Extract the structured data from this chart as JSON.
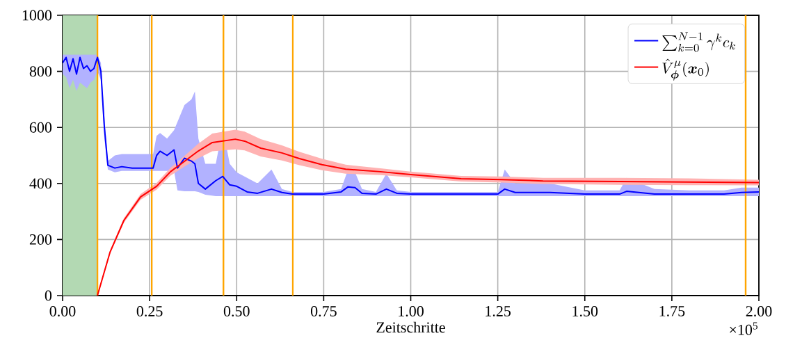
{
  "chart_data": {
    "type": "line",
    "xlabel": "Zeitschritte",
    "x": [
      0,
      0.01,
      0.02,
      0.03,
      0.04,
      0.05,
      0.06,
      0.07,
      0.08,
      0.09,
      0.1,
      0.11,
      0.12,
      0.13,
      0.15,
      0.17,
      0.2,
      0.23,
      0.26,
      0.27,
      0.28,
      0.3,
      0.32,
      0.33,
      0.35,
      0.37,
      0.38,
      0.39,
      0.41,
      0.44,
      0.46,
      0.48,
      0.5,
      0.53,
      0.56,
      0.6,
      0.63,
      0.66,
      0.75,
      0.8,
      0.82,
      0.84,
      0.86,
      0.9,
      0.93,
      0.96,
      1.0,
      1.1,
      1.2,
      1.25,
      1.27,
      1.3,
      1.4,
      1.5,
      1.6,
      1.62,
      1.7,
      1.8,
      1.9,
      1.95,
      2.0
    ],
    "series": [
      {
        "name": "\\sum_{k=0}^{N-1} \\gamma^k c_k",
        "color": "#0000ff",
        "values": [
          830,
          850,
          800,
          845,
          790,
          850,
          810,
          820,
          800,
          810,
          850,
          800,
          600,
          465,
          455,
          460,
          455,
          455,
          455,
          500,
          515,
          500,
          520,
          455,
          490,
          480,
          470,
          400,
          380,
          410,
          425,
          395,
          390,
          370,
          365,
          380,
          368,
          362,
          362,
          370,
          388,
          385,
          365,
          362,
          380,
          365,
          362,
          362,
          362,
          362,
          380,
          368,
          368,
          362,
          362,
          372,
          362,
          362,
          362,
          368,
          370
        ],
        "lower": [
          790,
          780,
          740,
          770,
          730,
          760,
          750,
          740,
          760,
          770,
          800,
          770,
          560,
          450,
          440,
          445,
          445,
          445,
          445,
          445,
          445,
          445,
          445,
          375,
          372,
          372,
          372,
          370,
          360,
          355,
          355,
          355,
          355,
          355,
          355,
          355,
          355,
          355,
          355,
          355,
          355,
          355,
          355,
          355,
          355,
          355,
          355,
          355,
          355,
          355,
          355,
          355,
          355,
          355,
          355,
          355,
          355,
          355,
          355,
          355,
          355
        ],
        "upper": [
          860,
          860,
          860,
          860,
          860,
          860,
          860,
          860,
          860,
          860,
          860,
          830,
          640,
          480,
          500,
          505,
          505,
          505,
          505,
          570,
          580,
          560,
          590,
          620,
          680,
          700,
          728,
          560,
          470,
          470,
          600,
          470,
          440,
          420,
          400,
          450,
          380,
          370,
          370,
          380,
          450,
          440,
          380,
          370,
          435,
          375,
          370,
          370,
          370,
          370,
          450,
          400,
          400,
          375,
          375,
          420,
          380,
          375,
          375,
          385,
          385
        ]
      },
      {
        "name": "\\hat{V}^{\\mu}_{\\boldsymbol{\\phi}}(\\boldsymbol{x}_0)",
        "color": "#ff0000",
        "x": [
          0.1,
          0.136,
          0.176,
          0.224,
          0.27,
          0.31,
          0.35,
          0.39,
          0.43,
          0.496,
          0.523,
          0.569,
          0.63,
          0.68,
          0.745,
          0.813,
          0.913,
          1.0,
          1.145,
          1.26,
          1.38,
          1.6,
          1.8,
          2.0
        ],
        "values": [
          0,
          154,
          268,
          352,
          390,
          442,
          479,
          516,
          546,
          558,
          551,
          526,
          509,
          489,
          467,
          451,
          442,
          432,
          417,
          414,
          409,
          407,
          405,
          403
        ],
        "lower": [
          0,
          148,
          260,
          342,
          378,
          428,
          460,
          490,
          515,
          522,
          518,
          496,
          482,
          465,
          447,
          435,
          430,
          422,
          407,
          403,
          398,
          395,
          394,
          393
        ],
        "upper": [
          5,
          160,
          276,
          362,
          402,
          456,
          498,
          542,
          578,
          592,
          585,
          558,
          536,
          513,
          488,
          467,
          454,
          442,
          427,
          425,
          420,
          420,
          418,
          413
        ]
      }
    ],
    "xlim": [
      0,
      2
    ],
    "ylim": [
      0,
      1000
    ],
    "xticks": [
      {
        "value": 0,
        "label": "0.00"
      },
      {
        "value": 0.25,
        "label": "0.25"
      },
      {
        "value": 0.5,
        "label": "0.50"
      },
      {
        "value": 0.75,
        "label": "0.75"
      },
      {
        "value": 1,
        "label": "1.00"
      },
      {
        "value": 1.25,
        "label": "1.25"
      },
      {
        "value": 1.5,
        "label": "1.50"
      },
      {
        "value": 1.75,
        "label": "1.75"
      },
      {
        "value": 2,
        "label": "2.00"
      }
    ],
    "yticks": [
      0,
      200,
      400,
      600,
      800,
      1000
    ],
    "ref_lines": [
      {
        "axis": "x",
        "value": 0.1,
        "color": "#ffa500"
      },
      {
        "axis": "x",
        "value": 0.256,
        "color": "#ffa500"
      },
      {
        "axis": "x",
        "value": 0.462,
        "color": "#ffa500"
      },
      {
        "axis": "x",
        "value": 0.661,
        "color": "#ffa500"
      },
      {
        "axis": "x",
        "value": 1.962,
        "color": "#ffa500"
      }
    ],
    "bands": [
      {
        "axis": "x",
        "from": 0,
        "to": 0.1,
        "color": "#b3d9b3"
      }
    ],
    "annotations": [
      "×10$^{5}$"
    ],
    "grid": true,
    "legend": "top right",
    "marker": "none",
    "line_style": "solid"
  }
}
